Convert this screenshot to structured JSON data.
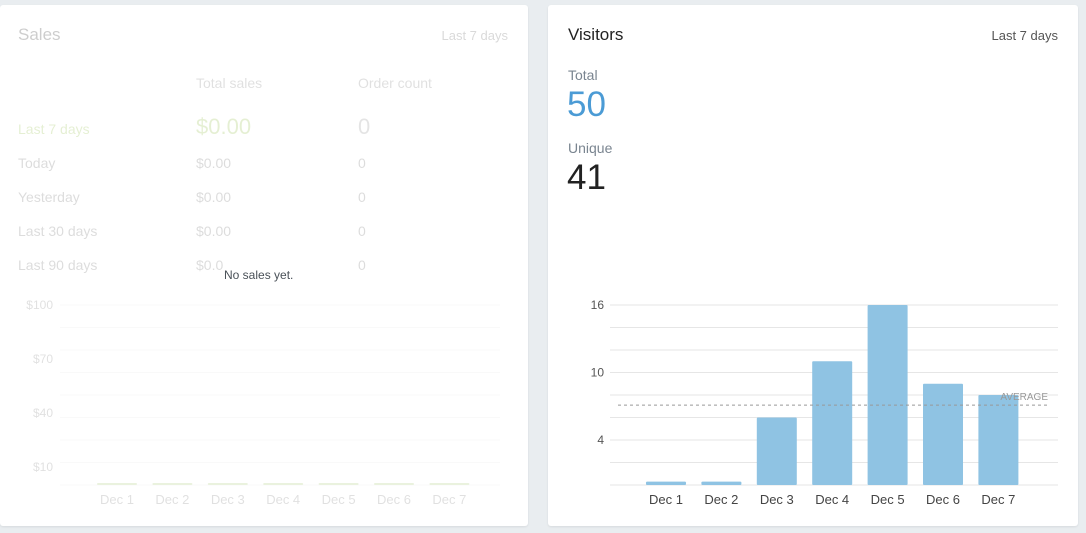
{
  "sales": {
    "title": "Sales",
    "range": "Last 7 days",
    "columns": [
      "Total sales",
      "Order count"
    ],
    "rows": [
      {
        "label": "Last 7 days",
        "total": "$0.00",
        "count": "0"
      },
      {
        "label": "Today",
        "total": "$0.00",
        "count": "0"
      },
      {
        "label": "Yesterday",
        "total": "$0.00",
        "count": "0"
      },
      {
        "label": "Last 30 days",
        "total": "$0.00",
        "count": "0"
      },
      {
        "label": "Last 90 days",
        "total": "$0.0",
        "count": "0"
      }
    ],
    "empty_message": "No sales yet.",
    "chart_data": {
      "type": "bar",
      "categories": [
        "Dec 1",
        "Dec 2",
        "Dec 3",
        "Dec 4",
        "Dec 5",
        "Dec 6",
        "Dec 7"
      ],
      "values": [
        0,
        0,
        0,
        0,
        0,
        0,
        0
      ],
      "yticks": [
        "$100",
        "$70",
        "$40",
        "$10"
      ],
      "ytick_values": [
        100,
        70,
        40,
        10
      ],
      "ylim": [
        0,
        100
      ],
      "color": "#a3c86b"
    }
  },
  "visitors": {
    "title": "Visitors",
    "range": "Last 7 days",
    "total_label": "Total",
    "total_value": "50",
    "unique_label": "Unique",
    "unique_value": "41",
    "total_color": "#4b9bd5",
    "chart_data": {
      "type": "bar",
      "categories": [
        "Dec 1",
        "Dec 2",
        "Dec 3",
        "Dec 4",
        "Dec 5",
        "Dec 6",
        "Dec 7"
      ],
      "values": [
        0.3,
        0.3,
        6,
        11,
        16,
        9,
        8
      ],
      "yticks": [
        "16",
        "10",
        "4"
      ],
      "ytick_values": [
        16,
        10,
        4
      ],
      "ylim": [
        0,
        16
      ],
      "average_label": "AVERAGE",
      "average": 7.1,
      "color": "#8fc3e3",
      "grid": true
    }
  }
}
